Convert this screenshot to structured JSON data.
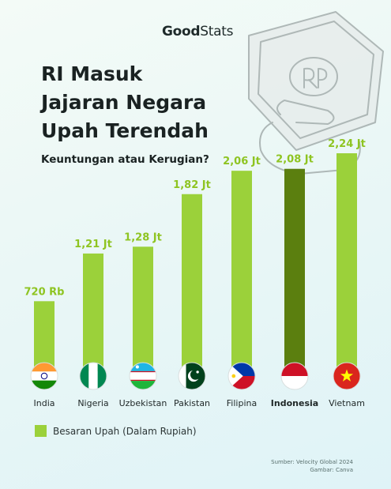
{
  "brand": {
    "part1": "Good",
    "part2": "Stats"
  },
  "title_lines": [
    "RI Masuk",
    "Jajaran Negara",
    "Upah Terendah"
  ],
  "subtitle": "Keuntungan atau Kerugian?",
  "colors": {
    "bar": "#9bd13a",
    "highlight_bar": "#5b7f0f",
    "label": "#8ec421"
  },
  "legend": {
    "label": "Besaran Upah (Dalam Rupiah)"
  },
  "source": {
    "line1": "Sumber: Velocity Global 2024",
    "line2": "Gambar: Canva"
  },
  "chart_data": {
    "type": "bar",
    "categories": [
      "India",
      "Nigeria",
      "Uzbekistan",
      "Pakistan",
      "Filipina",
      "Indonesia",
      "Vietnam"
    ],
    "series": [
      {
        "name": "Besaran Upah (Dalam Rupiah)",
        "values": [
          720000,
          1210000,
          1280000,
          1820000,
          2060000,
          2080000,
          2240000
        ]
      }
    ],
    "data_labels": [
      "720 Rb",
      "1,21 Jt",
      "1,28 Jt",
      "1,82 Jt",
      "2,06 Jt",
      "2,08 Jt",
      "2,24 Jt"
    ],
    "highlight": "Indonesia",
    "flags": [
      "india-flag-icon",
      "nigeria-flag-icon",
      "uzbekistan-flag-icon",
      "pakistan-flag-icon",
      "philippines-flag-icon",
      "indonesia-flag-icon",
      "vietnam-flag-icon"
    ],
    "ylim": [
      0,
      2240000
    ],
    "legend_position": "bottom-left",
    "grid": false
  }
}
